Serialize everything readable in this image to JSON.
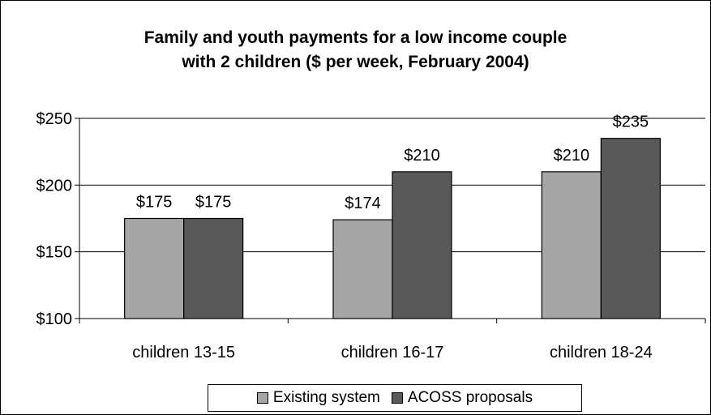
{
  "chart_data": {
    "type": "bar",
    "title_lines": [
      "Family and youth payments for a low income couple",
      "with 2 children ($ per week, February 2004)"
    ],
    "categories": [
      "children 13-15",
      "children 16-17",
      "children 18-24"
    ],
    "series": [
      {
        "name": "Existing system",
        "values": [
          175,
          174,
          210
        ],
        "labels": [
          "$175",
          "$174",
          "$210"
        ],
        "color": "#a6a6a6"
      },
      {
        "name": "ACOSS proposals",
        "values": [
          175,
          210,
          235
        ],
        "labels": [
          "$175",
          "$210",
          "$235"
        ],
        "color": "#595959"
      }
    ],
    "ylim": [
      100,
      250
    ],
    "yticks": [
      100,
      150,
      200,
      250
    ],
    "ytick_labels": [
      "$100",
      "$150",
      "$200",
      "$250"
    ],
    "grid": true,
    "legend_position": "bottom"
  }
}
